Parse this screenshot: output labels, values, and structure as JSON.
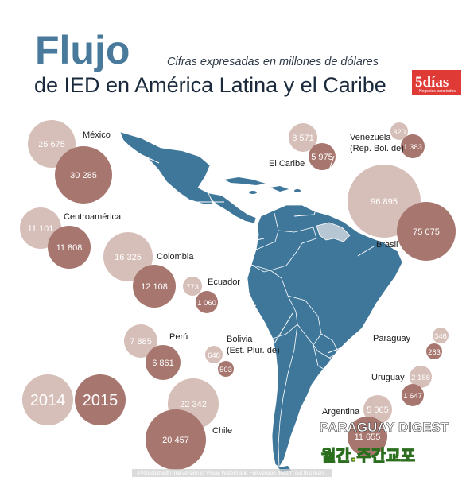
{
  "header": {
    "title": "Flujo",
    "subtitle": "de IED en América Latina y el Caribe",
    "note": "Cifras expresadas en millones de dólares",
    "logo": "5días",
    "logo_tagline": "Negocios para todos"
  },
  "legend": {
    "y2014": "2014",
    "y2015": "2015"
  },
  "colors": {
    "land": "#3f779b",
    "venezuela_region": "#b7c6d3",
    "bubble_2014": "#d6bfb8",
    "bubble_2015": "#a7766f"
  },
  "countries": {
    "mexico": {
      "name": "México",
      "v2014": "25 675",
      "v2015": "30 285"
    },
    "centroamerica": {
      "name": "Centroamérica",
      "v2014": "11 101",
      "v2015": "11 808"
    },
    "colombia": {
      "name": "Colombia",
      "v2014": "16 325",
      "v2015": "12 108"
    },
    "ecuador": {
      "name": "Ecuador",
      "v2014": "773",
      "v2015": "1 060"
    },
    "peru": {
      "name": "Perú",
      "v2014": "7 885",
      "v2015": "6 861"
    },
    "bolivia": {
      "name": "Bolivia",
      "name2": "(Est. Plur. de)",
      "v2014": "648",
      "v2015": "503"
    },
    "chile": {
      "name": "Chile",
      "v2014": "22 342",
      "v2015": "20 457"
    },
    "caribe": {
      "name": "El Caribe",
      "v2014": "8 571",
      "v2015": "5 975"
    },
    "venezuela": {
      "name": "Venezuela",
      "name2": "(Rep. Bol. de)",
      "v2014": "320",
      "v2015": "1 383"
    },
    "brasil": {
      "name": "Brasil",
      "v2014": "96 895",
      "v2015": "75 075"
    },
    "paraguay": {
      "name": "Paraguay",
      "v2014": "346",
      "v2015": "283"
    },
    "uruguay": {
      "name": "Uruguay",
      "v2014": "2 188",
      "v2015": "1 647"
    },
    "argentina": {
      "name": "Argentina",
      "v2014": "5 065",
      "v2015": "11 655"
    }
  },
  "watermark": {
    "line1": "PARAGUAY DIGEST",
    "line2": "월간.주간교포"
  },
  "trial_notice": "Protected with trial version of Visual Watermark. Full version doesn't put this mark."
}
